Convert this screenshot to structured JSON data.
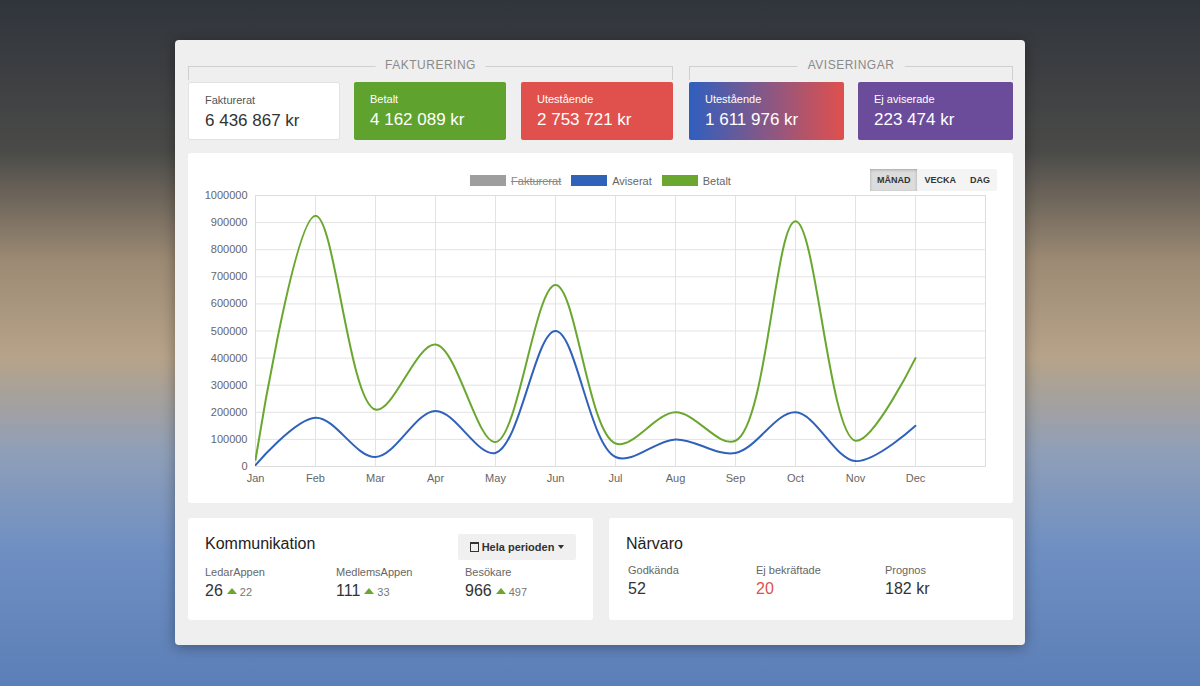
{
  "fakturering": {
    "title": "FAKTURERING",
    "cards": [
      {
        "label": "Fakturerat",
        "value": "6 436 867 kr",
        "color": "#ffffff"
      },
      {
        "label": "Betalt",
        "value": "4 162 089 kr",
        "color": "#5fa32e"
      },
      {
        "label": "Utestående",
        "value": "2 753 721 kr",
        "color": "#e0504d"
      }
    ]
  },
  "aviseringar": {
    "title": "AVISERINGAR",
    "cards": [
      {
        "label": "Utestående",
        "value": "1 611 976 kr",
        "colors": [
          "#2f5fbf",
          "#e0504d"
        ]
      },
      {
        "label": "Ej aviserade",
        "value": "223 474 kr",
        "color": "#6b4c9a"
      }
    ]
  },
  "chart_controls": {
    "buttons": [
      "MÅNAD",
      "VECKA",
      "DAG"
    ],
    "selected": "MÅNAD"
  },
  "chart_data": {
    "type": "line",
    "categories": [
      "Jan",
      "Feb",
      "Mar",
      "Apr",
      "May",
      "Jun",
      "Jul",
      "Aug",
      "Sep",
      "Oct",
      "Nov",
      "Dec"
    ],
    "series": [
      {
        "name": "Fakturerat",
        "color": "#9e9e9e",
        "values": [
          null,
          null,
          null,
          null,
          null,
          null,
          null,
          null,
          null,
          null,
          null,
          null
        ]
      },
      {
        "name": "Aviserat",
        "color": "#2f62b8",
        "values": [
          5000,
          180000,
          35000,
          205000,
          50000,
          500000,
          35000,
          100000,
          50000,
          200000,
          20000,
          150000
        ]
      },
      {
        "name": "Betalt",
        "color": "#6aa72f",
        "values": [
          25000,
          925000,
          210000,
          450000,
          90000,
          670000,
          85000,
          200000,
          95000,
          905000,
          95000,
          400000
        ]
      }
    ],
    "ylim": [
      0,
      1000000
    ],
    "yticks": [
      0,
      100000,
      200000,
      300000,
      400000,
      500000,
      600000,
      700000,
      800000,
      900000,
      1000000
    ],
    "grid": true,
    "legend": "top",
    "line_style": "smooth"
  },
  "kommunikation": {
    "title": "Kommunikation",
    "period": "Hela perioden",
    "stats": [
      {
        "label": "LedarAppen",
        "value": 26,
        "change": 22
      },
      {
        "label": "MedlemsAppen",
        "value": 111,
        "change": 33
      },
      {
        "label": "Besökare",
        "value": 966,
        "change": 497
      }
    ]
  },
  "narvaro": {
    "title": "Närvaro",
    "stats": [
      {
        "label": "Godkända",
        "value": "52"
      },
      {
        "label": "Ej bekräftade",
        "value": "20",
        "color": "#e0504d"
      },
      {
        "label": "Prognos",
        "value": "182 kr"
      }
    ]
  }
}
